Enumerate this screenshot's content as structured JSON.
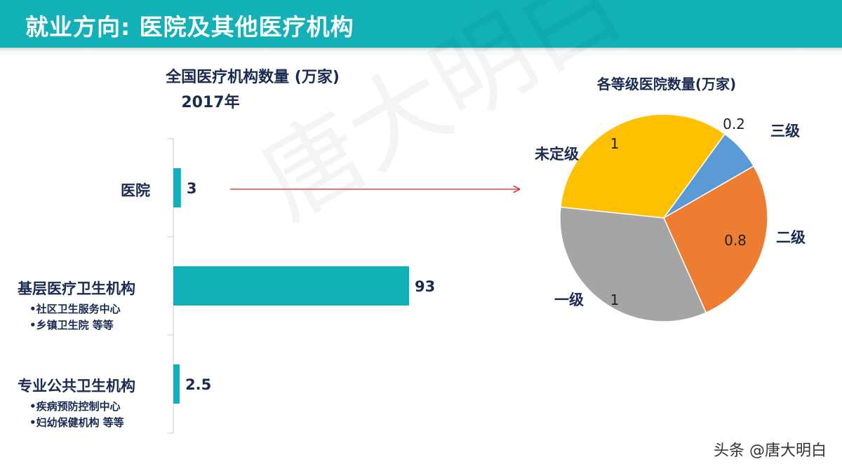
{
  "header": {
    "title": "就业方向: 医院及其他医疗机构"
  },
  "watermark": "唐大明白",
  "footer": {
    "credit": "头条 @唐大明白"
  },
  "categories_info": [
    {
      "name": "医院",
      "subs": []
    },
    {
      "name": "基层医疗卫生机构",
      "subs": [
        "•社区卫生服务中心",
        "•乡镇卫生院 等等"
      ]
    },
    {
      "name": "专业公共卫生机构",
      "subs": [
        "•疾病预防控制中心",
        "•妇幼保健机构 等等"
      ]
    }
  ],
  "chart_data": [
    {
      "type": "bar",
      "orientation": "horizontal",
      "title": "全国医疗机构数量 (万家)",
      "subtitle": "2017年",
      "categories": [
        "医院",
        "基层医疗卫生机构",
        "专业公共卫生机构"
      ],
      "values": [
        3,
        93,
        2.5
      ],
      "value_labels": [
        "3",
        "93",
        "2.5"
      ],
      "color": "#12b1b8",
      "xlim": [
        0,
        93
      ]
    },
    {
      "type": "pie",
      "title": "各等级医院数量(万家)",
      "labels": [
        "三级",
        "二级",
        "一级",
        "未定级"
      ],
      "values": [
        0.2,
        0.8,
        1,
        1
      ],
      "value_labels": [
        "0.2",
        "0.8",
        "1",
        "1"
      ],
      "colors": [
        "#5b9bd5",
        "#ed7d31",
        "#a5a5a5",
        "#ffc000"
      ]
    }
  ],
  "colors": {
    "accent": "#12b1b8",
    "arrow": "#e02020",
    "text_dark": "#1a2b52"
  }
}
